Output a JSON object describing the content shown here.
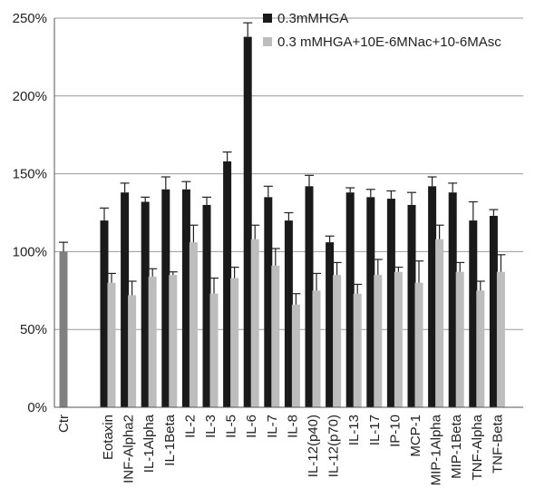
{
  "chart_data": {
    "type": "bar",
    "title": "",
    "xlabel": "",
    "ylabel": "",
    "ylim": [
      0,
      250
    ],
    "y_ticks": [
      "0%",
      "50%",
      "100%",
      "150%",
      "200%",
      "250%"
    ],
    "y_tick_values": [
      0,
      50,
      100,
      150,
      200,
      250
    ],
    "grid": "horizontal",
    "legend_position": "top-right",
    "control": {
      "category": "Ctr",
      "value": 100,
      "error": 6,
      "color": "#808080"
    },
    "categories": [
      "Eotaxin",
      "INF-Alpha2",
      "IL-1Alpha",
      "IL-1Beta",
      "IL-2",
      "IL-3",
      "IL-5",
      "IL-6",
      "IL-7",
      "IL-8",
      "IL-12(p40)",
      "IL-12(p70)",
      "IL-13",
      "IL-17",
      "IP-10",
      "MCP-1",
      "MIP-1Alpha",
      "MIP-1Beta",
      "TNF-Alpha",
      "TNF-Beta"
    ],
    "series": [
      {
        "name": "0.3mMHGA",
        "color": "#1a1a1a",
        "values": [
          120,
          138,
          132,
          140,
          140,
          130,
          158,
          238,
          135,
          120,
          142,
          106,
          138,
          135,
          134,
          130,
          142,
          138,
          120,
          123
        ],
        "errors": [
          8,
          6,
          3,
          8,
          5,
          5,
          6,
          9,
          7,
          5,
          7,
          4,
          3,
          5,
          5,
          8,
          6,
          6,
          12,
          4
        ]
      },
      {
        "name": "0.3 mMHGA+10E-6MNac+10-6MAsc",
        "color": "#bdbdbd",
        "values": [
          80,
          72,
          84,
          85,
          106,
          73,
          83,
          108,
          91,
          66,
          75,
          85,
          73,
          85,
          87,
          80,
          108,
          87,
          75,
          87
        ],
        "errors": [
          6,
          9,
          5,
          2,
          11,
          10,
          7,
          9,
          11,
          7,
          11,
          8,
          6,
          10,
          3,
          14,
          9,
          6,
          6,
          11
        ]
      }
    ]
  }
}
